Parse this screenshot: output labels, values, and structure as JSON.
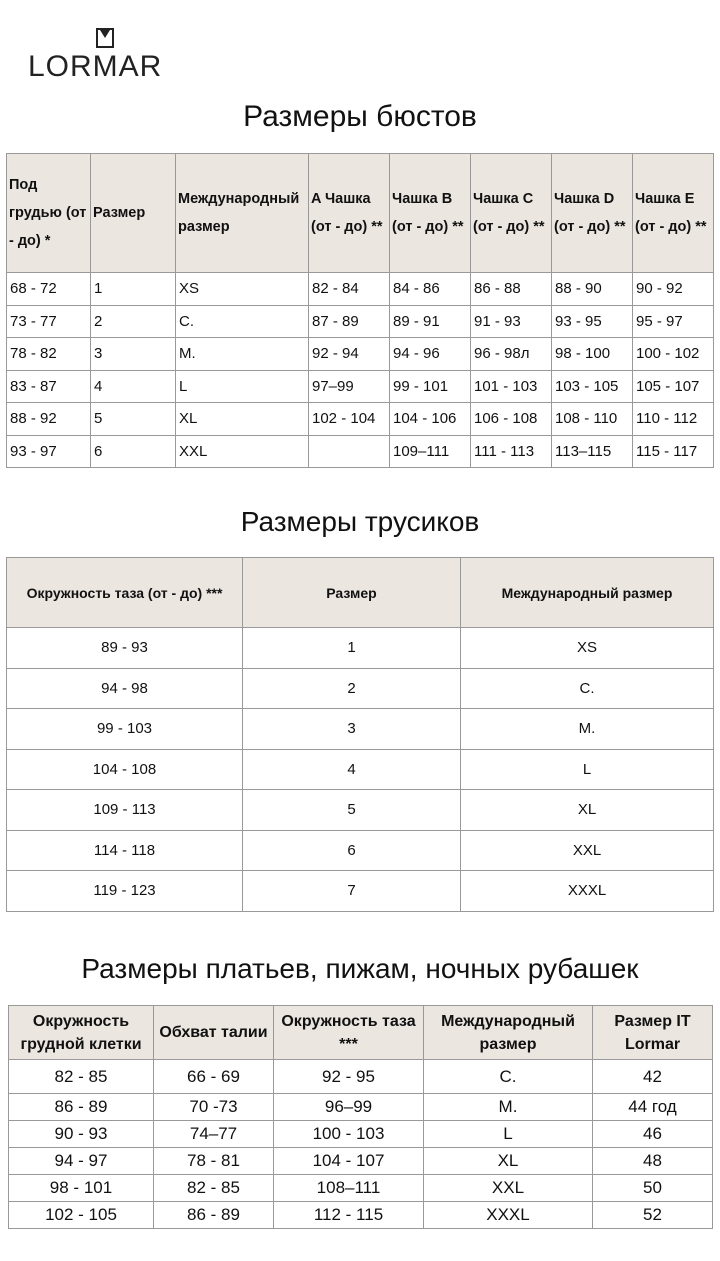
{
  "brand": "LORMAR",
  "bust": {
    "title": "Размеры бюстов",
    "headers": [
      "Под грудью (от - до) *",
      "Размер",
      "Международный размер",
      "A Чашка (от - до) **",
      "Чашка B (от - до) **",
      "Чашка C (от - до) **",
      "Чашка D (от - до) **",
      "Чашка E (от - до) **"
    ],
    "rows": [
      [
        "68 - 72",
        "1",
        "XS",
        "82 - 84",
        "84 - 86",
        "86 - 88",
        "88 - 90",
        "90 - 92"
      ],
      [
        "73 - 77",
        "2",
        "С.",
        "87 - 89",
        "89 - 91",
        "91 - 93",
        "93 - 95",
        "95 - 97"
      ],
      [
        "78 - 82",
        "3",
        "М.",
        "92 - 94",
        "94 - 96",
        "96 - 98л",
        "98 - 100",
        "100 - 102"
      ],
      [
        "83 - 87",
        "4",
        "L",
        "97–99",
        "99 - 101",
        "101 - 103",
        "103 - 105",
        "105 - 107"
      ],
      [
        "88 - 92",
        "5",
        "XL",
        "102 - 104",
        "104 - 106",
        "106 - 108",
        "108 - 110",
        "110 - 112"
      ],
      [
        "93 - 97",
        "6",
        "XXL",
        "",
        "109–111",
        "111 - 113",
        "113–115",
        "115 - 117"
      ]
    ]
  },
  "panties": {
    "title": "Размеры трусиков",
    "headers": [
      "Окружность таза (от - до) ***",
      "Размер",
      "Международный размер"
    ],
    "rows": [
      [
        "89 - 93",
        "1",
        "XS"
      ],
      [
        "94 - 98",
        "2",
        "С."
      ],
      [
        "99 - 103",
        "3",
        "М."
      ],
      [
        "104 - 108",
        "4",
        "L"
      ],
      [
        "109 - 113",
        "5",
        "XL"
      ],
      [
        "114 - 118",
        "6",
        "XXL"
      ],
      [
        "119 - 123",
        "7",
        "XXXL"
      ]
    ]
  },
  "dresses": {
    "title": "Размеры платьев, пижам, ночных рубашек",
    "headers": [
      "Окружность грудной клетки",
      "Обхват талии",
      "Окружность таза ***",
      "Международный размер",
      "Размер IT Lormar"
    ],
    "rows": [
      [
        "82 - 85",
        "66 - 69",
        "92 - 95",
        "С.",
        "42"
      ],
      [
        "86 - 89",
        "70 -73",
        "96–99",
        "М.",
        "44 год"
      ],
      [
        "90 - 93",
        "74–77",
        "100 - 103",
        "L",
        "46"
      ],
      [
        "94 - 97",
        "78 - 81",
        "104 - 107",
        "XL",
        "48"
      ],
      [
        "98 - 101",
        "82 - 85",
        "108–111",
        "XXL",
        "50"
      ],
      [
        "102 - 105",
        "86 - 89",
        "112 - 115",
        "XXXL",
        "52"
      ]
    ]
  }
}
